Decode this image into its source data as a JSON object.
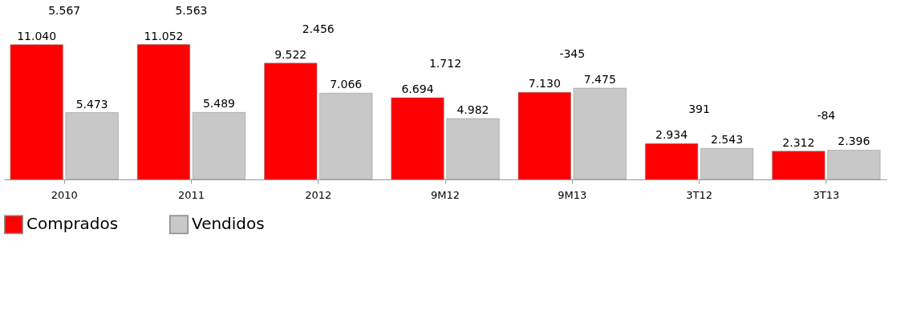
{
  "chart_data": {
    "type": "bar",
    "categories": [
      "2010",
      "2011",
      "2012",
      "9M12",
      "9M13",
      "3T12",
      "3T13"
    ],
    "series": [
      {
        "name": "Comprados",
        "color": "#ff0000",
        "values": [
          11040,
          11052,
          9522,
          6694,
          7130,
          2934,
          2312
        ],
        "value_labels": [
          "11.040",
          "11.052",
          "9.522",
          "6.694",
          "7.130",
          "2.934",
          "2.312"
        ]
      },
      {
        "name": "Vendidos",
        "color": "#c8c8c8",
        "values": [
          5473,
          5489,
          7066,
          4982,
          7475,
          2543,
          2396
        ],
        "value_labels": [
          "5.473",
          "5.489",
          "7.066",
          "4.982",
          "7.475",
          "2.543",
          "2.396"
        ]
      }
    ],
    "annotations": [
      "5.567",
      "5.563",
      "2.456",
      "1.712",
      "-345",
      "391",
      "-84"
    ],
    "legend": "bottom",
    "grid": false
  }
}
